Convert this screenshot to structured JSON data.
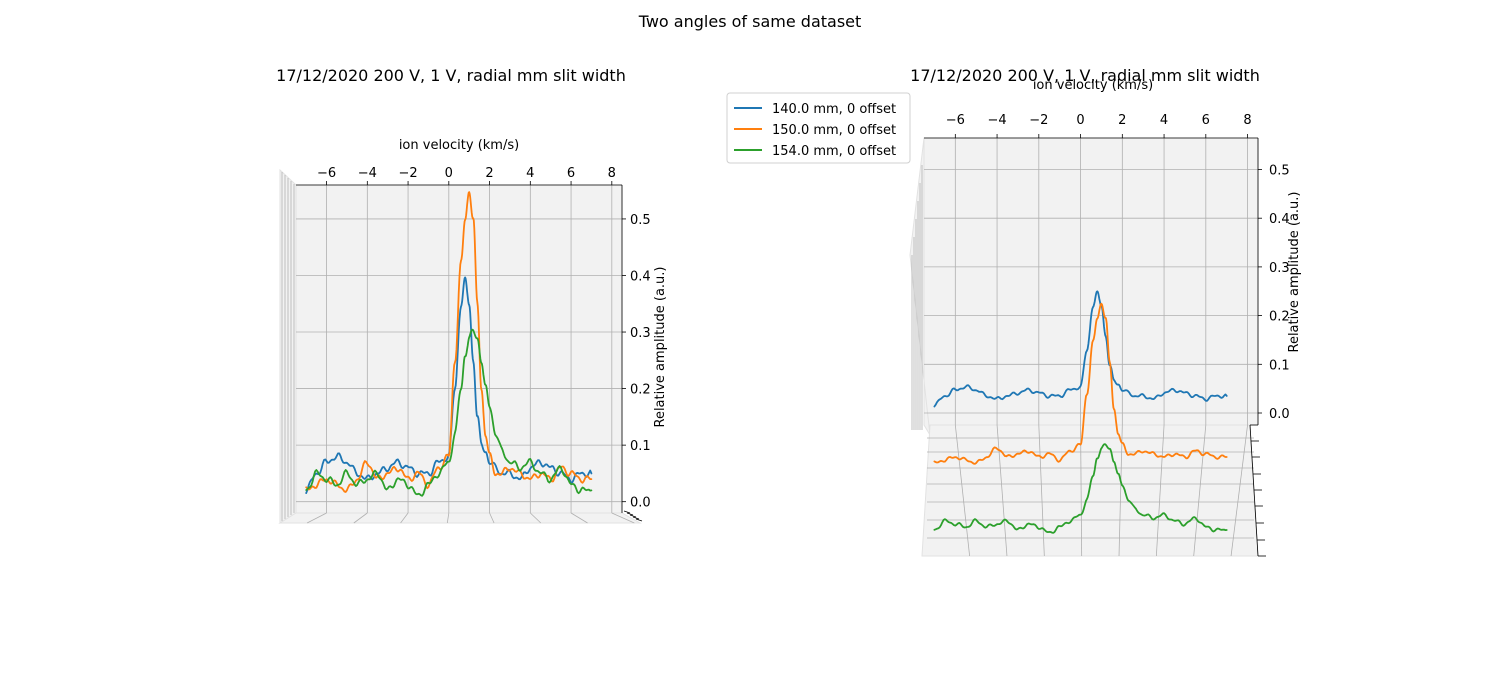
{
  "suptitle": "Two angles of same dataset",
  "colors": {
    "s0": "#1f77b4",
    "s1": "#ff7f0e",
    "s2": "#2ca02c"
  },
  "chart_data": [
    {
      "type": "line",
      "view": "3d-front",
      "title": "17/12/2020 200 V, 1 V, radial mm slit width",
      "xlabel": "ion velocity (km/s)",
      "ylabel": "Relative amplitude (a.u.)",
      "xlim": [
        -7.5,
        8.5
      ],
      "ylim": [
        -0.02,
        0.56
      ],
      "xticks": [
        "−6",
        "−4",
        "−2",
        "0",
        "2",
        "4",
        "6",
        "8"
      ],
      "xtick_values": [
        -6,
        -4,
        -2,
        0,
        2,
        4,
        6,
        8
      ],
      "yticks": [
        "0.0",
        "0.1",
        "0.2",
        "0.3",
        "0.4",
        "0.5"
      ],
      "ytick_values": [
        0.0,
        0.1,
        0.2,
        0.3,
        0.4,
        0.5
      ],
      "series": [
        {
          "name": "140.0 mm, 0 offset",
          "x": [
            -7.0,
            -6.5,
            -6.0,
            -5.5,
            -5.0,
            -4.5,
            -4.0,
            -3.5,
            -3.0,
            -2.5,
            -2.0,
            -1.5,
            -1.0,
            -0.5,
            0.0,
            0.3,
            0.6,
            0.8,
            1.0,
            1.2,
            1.4,
            1.6,
            1.8,
            2.0,
            2.3,
            2.6,
            3.0,
            3.5,
            4.0,
            4.5,
            5.0,
            5.5,
            6.0,
            6.5,
            7.0
          ],
          "y": [
            0.02,
            0.05,
            0.07,
            0.08,
            0.07,
            0.05,
            0.04,
            0.05,
            0.06,
            0.07,
            0.06,
            0.05,
            0.05,
            0.07,
            0.08,
            0.2,
            0.35,
            0.39,
            0.35,
            0.25,
            0.15,
            0.1,
            0.09,
            0.07,
            0.06,
            0.05,
            0.05,
            0.04,
            0.06,
            0.07,
            0.06,
            0.05,
            0.04,
            0.05,
            0.05
          ]
        },
        {
          "name": "150.0 mm, 0 offset",
          "x": [
            -7.0,
            -6.5,
            -6.0,
            -5.5,
            -5.0,
            -4.5,
            -4.0,
            -3.5,
            -3.0,
            -2.5,
            -2.0,
            -1.5,
            -1.0,
            -0.5,
            0.0,
            0.3,
            0.6,
            0.8,
            1.0,
            1.2,
            1.4,
            1.6,
            1.8,
            2.0,
            2.3,
            2.6,
            3.0,
            3.5,
            4.0,
            4.5,
            5.0,
            5.5,
            6.0,
            6.5,
            7.0
          ],
          "y": [
            0.02,
            0.03,
            0.04,
            0.03,
            0.02,
            0.04,
            0.07,
            0.04,
            0.05,
            0.06,
            0.04,
            0.05,
            0.03,
            0.06,
            0.08,
            0.25,
            0.42,
            0.5,
            0.55,
            0.5,
            0.35,
            0.2,
            0.12,
            0.08,
            0.05,
            0.05,
            0.06,
            0.05,
            0.04,
            0.05,
            0.04,
            0.06,
            0.05,
            0.04,
            0.04
          ]
        },
        {
          "name": "154.0 mm, 0 offset",
          "x": [
            -7.0,
            -6.5,
            -6.0,
            -5.5,
            -5.0,
            -4.5,
            -4.0,
            -3.5,
            -3.0,
            -2.5,
            -2.0,
            -1.5,
            -1.0,
            -0.5,
            0.0,
            0.3,
            0.6,
            0.8,
            1.0,
            1.2,
            1.4,
            1.6,
            1.8,
            2.0,
            2.3,
            2.6,
            3.0,
            3.5,
            4.0,
            4.5,
            5.0,
            5.5,
            6.0,
            6.5,
            7.0
          ],
          "y": [
            0.02,
            0.05,
            0.04,
            0.03,
            0.05,
            0.03,
            0.04,
            0.05,
            0.02,
            0.04,
            0.03,
            0.01,
            0.03,
            0.05,
            0.07,
            0.12,
            0.2,
            0.26,
            0.29,
            0.3,
            0.29,
            0.25,
            0.2,
            0.17,
            0.12,
            0.09,
            0.07,
            0.06,
            0.07,
            0.05,
            0.04,
            0.06,
            0.03,
            0.02,
            0.02
          ]
        }
      ]
    },
    {
      "type": "line",
      "view": "3d-elevated",
      "title": "17/12/2020 200 V, 1 V, radial mm slit width",
      "xlabel": "ion velocity (km/s)",
      "ylabel": "Relative amplitude (a.u.)",
      "xlim": [
        -7.5,
        8.5
      ],
      "ylim": [
        0.0,
        0.5
      ],
      "xticks": [
        "−6",
        "−4",
        "−2",
        "0",
        "2",
        "4",
        "6",
        "8"
      ],
      "xtick_values": [
        -6,
        -4,
        -2,
        0,
        2,
        4,
        6,
        8
      ],
      "yticks": [
        "0.0",
        "0.1",
        "0.2",
        "0.3",
        "0.4",
        "0.5"
      ],
      "ytick_values": [
        0.0,
        0.1,
        0.2,
        0.3,
        0.4,
        0.5
      ],
      "legend": "upper-left (outside)",
      "series": [
        {
          "name": "140.0 mm, 0 offset",
          "ref": 0
        },
        {
          "name": "150.0 mm, 0 offset",
          "ref": 1
        },
        {
          "name": "154.0 mm, 0 offset",
          "ref": 2
        }
      ]
    }
  ]
}
